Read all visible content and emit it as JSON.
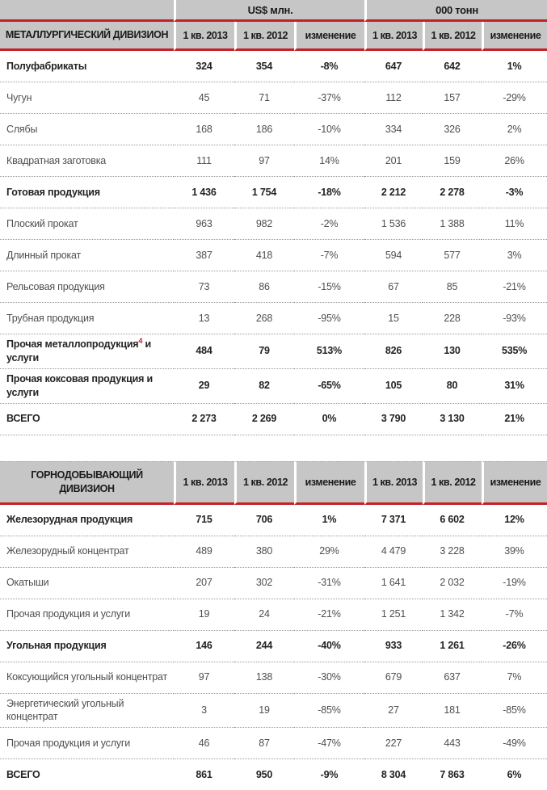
{
  "colors": {
    "accent_red": "#c42127",
    "header_bg": "#c6c6c6"
  },
  "unit_band": {
    "usd": "US$ млн.",
    "tonnes": "000 тонн"
  },
  "tables": [
    {
      "id": "metallurgical",
      "title_lines": [
        "МЕТАЛЛУРГИЧЕСКИЙ ДИВИЗИОН"
      ],
      "columns": [
        "1 кв. 2013",
        "1 кв. 2012",
        "изменение",
        "1 кв. 2013",
        "1 кв. 2012",
        "изменение"
      ],
      "rows": [
        {
          "label": "Полуфабрикаты",
          "bold": true,
          "values": [
            "324",
            "354",
            "-8%",
            "647",
            "642",
            "1%"
          ]
        },
        {
          "label": "Чугун",
          "bold": false,
          "values": [
            "45",
            "71",
            "-37%",
            "112",
            "157",
            "-29%"
          ]
        },
        {
          "label": "Слябы",
          "bold": false,
          "values": [
            "168",
            "186",
            "-10%",
            "334",
            "326",
            "2%"
          ]
        },
        {
          "label": "Квадратная заготовка",
          "bold": false,
          "values": [
            "111",
            "97",
            "14%",
            "201",
            "159",
            "26%"
          ]
        },
        {
          "label": "Готовая продукция",
          "bold": true,
          "values": [
            "1 436",
            "1 754",
            "-18%",
            "2 212",
            "2 278",
            "-3%"
          ]
        },
        {
          "label": "Плоский прокат",
          "bold": false,
          "values": [
            "963",
            "982",
            "-2%",
            "1 536",
            "1 388",
            "11%"
          ]
        },
        {
          "label": "Длинный прокат",
          "bold": false,
          "values": [
            "387",
            "418",
            "-7%",
            "594",
            "577",
            "3%"
          ]
        },
        {
          "label": "Рельсовая продукция",
          "bold": false,
          "values": [
            "73",
            "86",
            "-15%",
            "67",
            "85",
            "-21%"
          ]
        },
        {
          "label": "Трубная продукция",
          "bold": false,
          "values": [
            "13",
            "268",
            "-95%",
            "15",
            "228",
            "-93%"
          ]
        },
        {
          "label": "Прочая металлопродукция",
          "sup": "4",
          "label_after": " и услуги",
          "bold": true,
          "values": [
            "484",
            "79",
            "513%",
            "826",
            "130",
            "535%"
          ]
        },
        {
          "label": "Прочая коксовая продукция и услуги",
          "bold": true,
          "values": [
            "29",
            "82",
            "-65%",
            "105",
            "80",
            "31%"
          ]
        },
        {
          "label": "ВСЕГО",
          "bold": true,
          "values": [
            "2 273",
            "2 269",
            "0%",
            "3 790",
            "3 130",
            "21%"
          ]
        }
      ]
    },
    {
      "id": "mining",
      "title_lines": [
        "ГОРНОДОБЫВАЮЩИЙ",
        "ДИВИЗИОН"
      ],
      "columns": [
        "1 кв. 2013",
        "1 кв. 2012",
        "изменение",
        "1 кв. 2013",
        "1 кв. 2012",
        "изменение"
      ],
      "rows": [
        {
          "label": "Железорудная продукция",
          "bold": true,
          "values": [
            "715",
            "706",
            "1%",
            "7 371",
            "6 602",
            "12%"
          ]
        },
        {
          "label": "Железорудный концентрат",
          "bold": false,
          "values": [
            "489",
            "380",
            "29%",
            "4 479",
            "3 228",
            "39%"
          ]
        },
        {
          "label": "Окатыши",
          "bold": false,
          "values": [
            "207",
            "302",
            "-31%",
            "1 641",
            "2 032",
            "-19%"
          ]
        },
        {
          "label": "Прочая продукция и услуги",
          "bold": false,
          "values": [
            "19",
            "24",
            "-21%",
            "1 251",
            "1 342",
            "-7%"
          ]
        },
        {
          "label": "Угольная продукция",
          "bold": true,
          "values": [
            "146",
            "244",
            "-40%",
            "933",
            "1 261",
            "-26%"
          ]
        },
        {
          "label": "Коксующийся угольный концентрат",
          "bold": false,
          "values": [
            "97",
            "138",
            "-30%",
            "679",
            "637",
            "7%"
          ]
        },
        {
          "label": "Энергетический угольный концентрат",
          "bold": false,
          "values": [
            "3",
            "19",
            "-85%",
            "27",
            "181",
            "-85%"
          ]
        },
        {
          "label": "Прочая продукция и услуги",
          "bold": false,
          "values": [
            "46",
            "87",
            "-47%",
            "227",
            "443",
            "-49%"
          ]
        },
        {
          "label": "ВСЕГО",
          "bold": true,
          "values": [
            "861",
            "950",
            "-9%",
            "8 304",
            "7 863",
            "6%"
          ]
        }
      ]
    }
  ]
}
